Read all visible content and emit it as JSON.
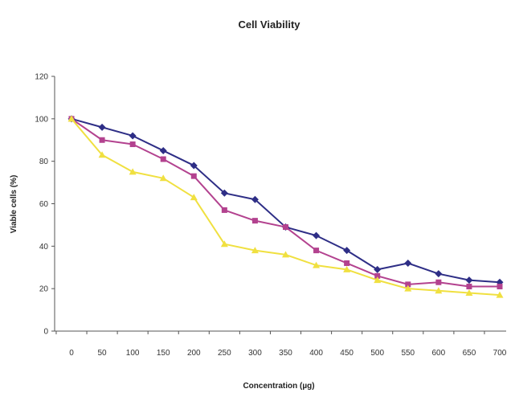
{
  "chart_data": {
    "type": "line",
    "title": "Cell Viability",
    "xlabel": "Concentration (µg)",
    "ylabel": "Viable cells (%)",
    "categories": [
      "0",
      "50",
      "100",
      "150",
      "200",
      "250",
      "300",
      "350",
      "400",
      "450",
      "500",
      "550",
      "600",
      "650",
      "700"
    ],
    "ylim": [
      0,
      120
    ],
    "yticks": [
      "0",
      "20",
      "40",
      "60",
      "80",
      "100",
      "120"
    ],
    "grid": false,
    "legend": "none",
    "series": [
      {
        "color": "#2e2e86",
        "marker": "diamond",
        "values": [
          100,
          96,
          92,
          85,
          78,
          65,
          62,
          49,
          45,
          38,
          29,
          32,
          27,
          24,
          23
        ]
      },
      {
        "color": "#b3428f",
        "marker": "square",
        "values": [
          100,
          90,
          88,
          81,
          73,
          57,
          52,
          49,
          38,
          32,
          26,
          22,
          23,
          21,
          21
        ]
      },
      {
        "color": "#f0e040",
        "marker": "triangle",
        "values": [
          100,
          83,
          75,
          72,
          63,
          41,
          38,
          36,
          31,
          29,
          24,
          20,
          19,
          18,
          17
        ]
      }
    ]
  }
}
